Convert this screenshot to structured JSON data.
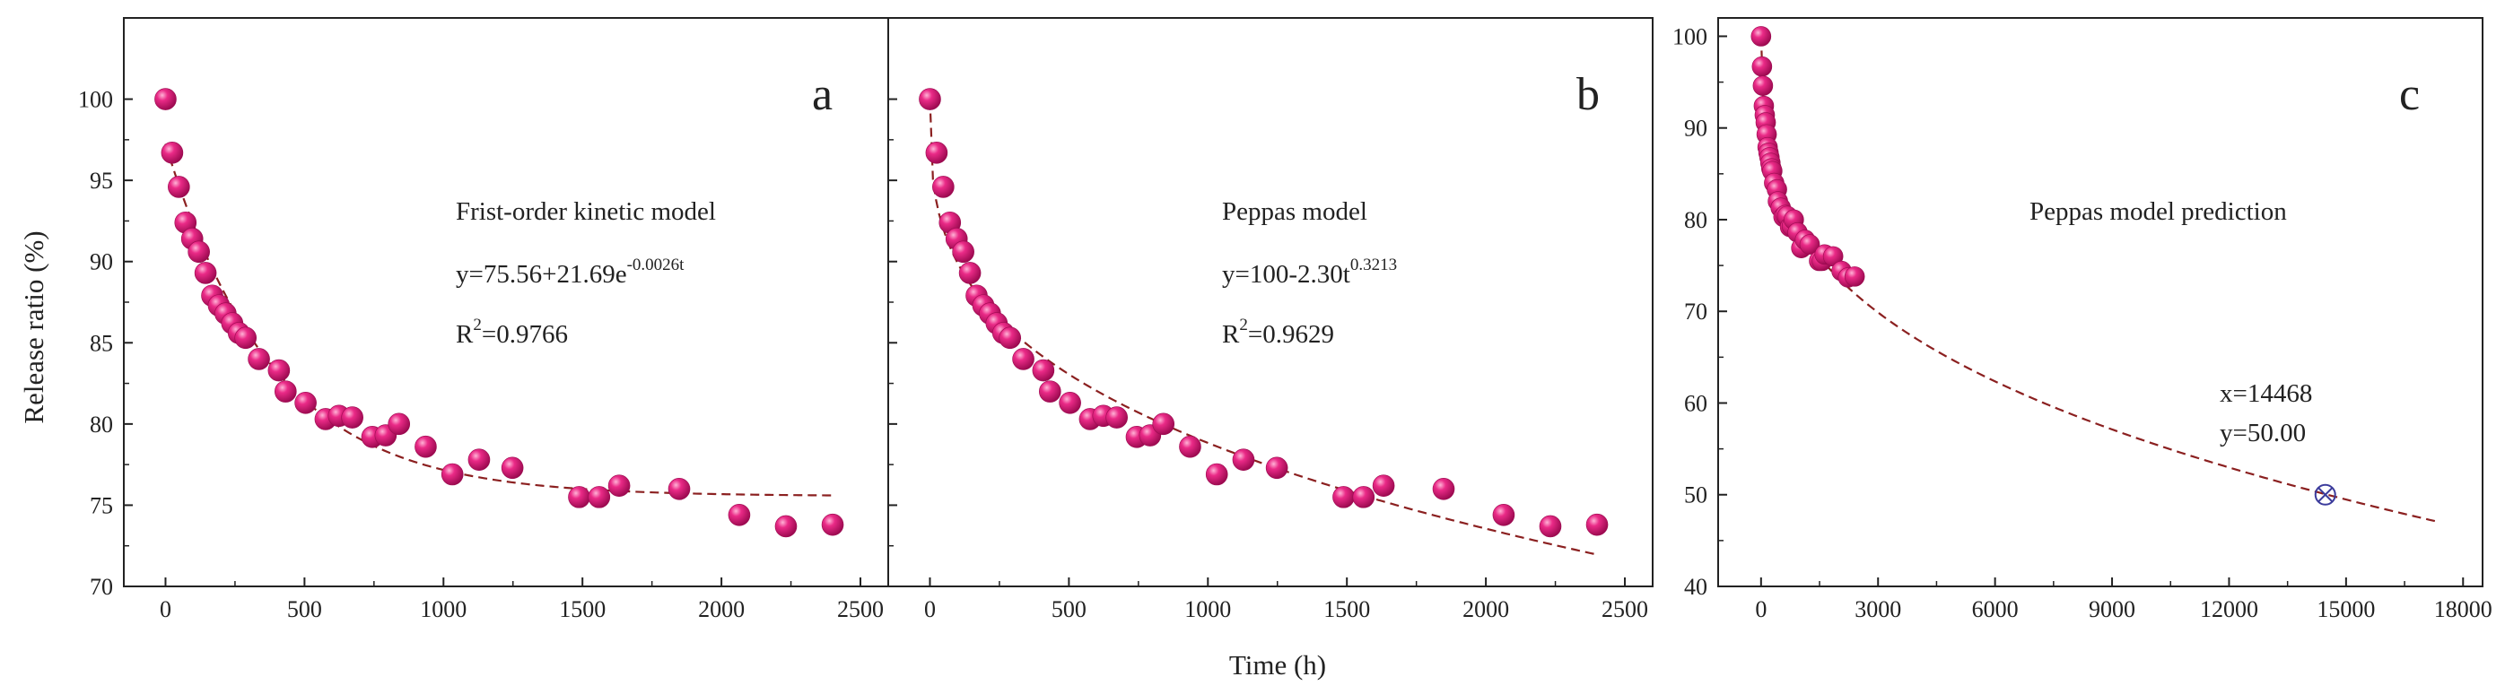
{
  "figure": {
    "ylabel": "Release ratio (%)",
    "xlabel": "Time (h)"
  },
  "colors": {
    "marker": "#e0187a",
    "marker_highlight": "#ff9cc8",
    "marker_dark": "#9c0a50",
    "fit_line": "#8b2020",
    "predict_marker": "#3b3b9c",
    "axis": "#222222"
  },
  "chart_data": [
    {
      "type": "scatter",
      "panel_label": "a",
      "xlim": [
        -150,
        2600
      ],
      "ylim": [
        70,
        105
      ],
      "xticks": [
        "0",
        "500",
        "1000",
        "1500",
        "2000",
        "2500"
      ],
      "xtick_values": [
        0,
        500,
        1000,
        1500,
        2000,
        2500
      ],
      "yticks": [
        "70",
        "75",
        "80",
        "85",
        "90",
        "95",
        "100"
      ],
      "ytick_values": [
        70,
        75,
        80,
        85,
        90,
        95,
        100
      ],
      "annotation": {
        "title": "Frist-order kinetic model",
        "equation_base": "y=75.56+21.69e",
        "equation_exp": "-0.0026t",
        "r2_prefix": "R",
        "r2_sup": "2",
        "r2_value": "=0.9766"
      },
      "fit": {
        "model": "first-order",
        "a": 75.56,
        "b": 21.69,
        "k": 0.0026,
        "x_range": [
          0,
          2400
        ]
      },
      "series": [
        {
          "name": "measured",
          "x": [
            0,
            24,
            48,
            72,
            96,
            120,
            144,
            168,
            192,
            216,
            240,
            264,
            288,
            336,
            408,
            432,
            504,
            576,
            624,
            672,
            744,
            792,
            840,
            936,
            1032,
            1128,
            1248,
            1488,
            1560,
            1632,
            1848,
            2064,
            2232,
            2400
          ],
          "y": [
            100.0,
            96.7,
            94.6,
            92.4,
            91.4,
            90.6,
            89.3,
            87.9,
            87.3,
            86.8,
            86.2,
            85.6,
            85.3,
            84.0,
            83.3,
            82.0,
            81.3,
            80.3,
            80.5,
            80.4,
            79.2,
            79.3,
            80.0,
            78.6,
            76.9,
            77.8,
            77.3,
            75.5,
            75.5,
            76.2,
            76.0,
            74.4,
            73.7,
            73.8
          ]
        }
      ]
    },
    {
      "type": "scatter",
      "panel_label": "b",
      "xlim": [
        -150,
        2600
      ],
      "ylim": [
        70,
        105
      ],
      "xticks": [
        "0",
        "500",
        "1000",
        "1500",
        "2000",
        "2500"
      ],
      "xtick_values": [
        0,
        500,
        1000,
        1500,
        2000,
        2500
      ],
      "annotation": {
        "title": "Peppas model",
        "equation_base": "y=100-2.30t",
        "equation_exp": "0.3213",
        "r2_prefix": "R",
        "r2_sup": "2",
        "r2_value": "=0.9629"
      },
      "fit": {
        "model": "peppas",
        "a": 100,
        "b": 2.3,
        "n": 0.3213,
        "x_range": [
          0,
          2400
        ]
      },
      "series": [
        {
          "name": "measured",
          "x": [
            0,
            24,
            48,
            72,
            96,
            120,
            144,
            168,
            192,
            216,
            240,
            264,
            288,
            336,
            408,
            432,
            504,
            576,
            624,
            672,
            744,
            792,
            840,
            936,
            1032,
            1128,
            1248,
            1488,
            1560,
            1632,
            1848,
            2064,
            2232,
            2400
          ],
          "y": [
            100.0,
            96.7,
            94.6,
            92.4,
            91.4,
            90.6,
            89.3,
            87.9,
            87.3,
            86.8,
            86.2,
            85.6,
            85.3,
            84.0,
            83.3,
            82.0,
            81.3,
            80.3,
            80.5,
            80.4,
            79.2,
            79.3,
            80.0,
            78.6,
            76.9,
            77.8,
            77.3,
            75.5,
            75.5,
            76.2,
            76.0,
            74.4,
            73.7,
            73.8
          ]
        }
      ]
    },
    {
      "type": "scatter",
      "panel_label": "c",
      "xlim": [
        -1100,
        18500
      ],
      "ylim": [
        40,
        102
      ],
      "xticks": [
        "0",
        "3000",
        "6000",
        "9000",
        "12000",
        "15000",
        "18000"
      ],
      "xtick_values": [
        0,
        3000,
        6000,
        9000,
        12000,
        15000,
        18000
      ],
      "yticks": [
        "40",
        "50",
        "60",
        "70",
        "80",
        "90",
        "100"
      ],
      "ytick_values": [
        40,
        50,
        60,
        70,
        80,
        90,
        100
      ],
      "annotation": {
        "title": "Peppas model prediction",
        "point_x_label": "x=14468",
        "point_y_label": "y=50.00"
      },
      "fit": {
        "model": "peppas",
        "a": 100,
        "b": 2.3,
        "n": 0.3213,
        "x_range": [
          0,
          17300
        ]
      },
      "prediction_point": {
        "x": 14468,
        "y": 50.0
      },
      "series": [
        {
          "name": "measured",
          "x": [
            0,
            24,
            48,
            72,
            96,
            120,
            144,
            168,
            192,
            216,
            240,
            264,
            288,
            336,
            408,
            432,
            504,
            576,
            624,
            672,
            744,
            792,
            840,
            936,
            1032,
            1128,
            1248,
            1488,
            1560,
            1632,
            1848,
            2064,
            2232,
            2400
          ],
          "y": [
            100.0,
            96.7,
            94.6,
            92.4,
            91.4,
            90.6,
            89.3,
            87.9,
            87.3,
            86.8,
            86.2,
            85.6,
            85.3,
            84.0,
            83.3,
            82.0,
            81.3,
            80.3,
            80.5,
            80.4,
            79.2,
            79.3,
            80.0,
            78.6,
            76.9,
            77.8,
            77.3,
            75.5,
            75.5,
            76.2,
            76.0,
            74.4,
            73.7,
            73.8
          ]
        }
      ]
    }
  ]
}
